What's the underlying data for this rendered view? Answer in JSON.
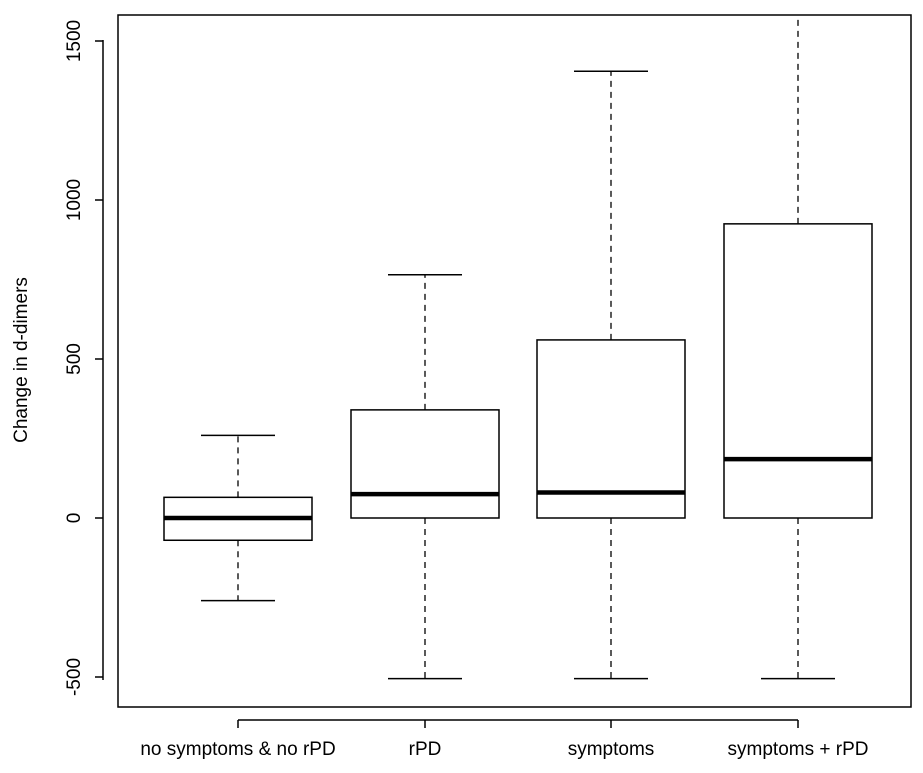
{
  "chart_data": {
    "type": "boxplot",
    "title": "",
    "xlabel": "",
    "ylabel": "Change in d-dimers",
    "ylim": [
      -520,
      1580
    ],
    "yticks": [
      -500,
      0,
      500,
      1000,
      1500
    ],
    "ytick_labels": [
      "-500",
      "0",
      "500",
      "1000",
      "1500"
    ],
    "categories": [
      "no symptoms & no rPD",
      "rPD",
      "symptoms",
      "symptoms + rPD"
    ],
    "boxes": [
      {
        "category": "no symptoms & no rPD",
        "whisker_low": -260,
        "q1": -70,
        "median": 0,
        "q3": 65,
        "whisker_high": 260
      },
      {
        "category": "rPD",
        "whisker_low": -505,
        "q1": 0,
        "median": 75,
        "q3": 340,
        "whisker_high": 765
      },
      {
        "category": "symptoms",
        "whisker_low": -505,
        "q1": 0,
        "median": 80,
        "q3": 560,
        "whisker_high": 1405
      },
      {
        "category": "symptoms + rPD",
        "whisker_low": -505,
        "q1": 0,
        "median": 185,
        "q3": 925,
        "whisker_high": 1580
      }
    ],
    "grid": false,
    "legend": "none"
  }
}
